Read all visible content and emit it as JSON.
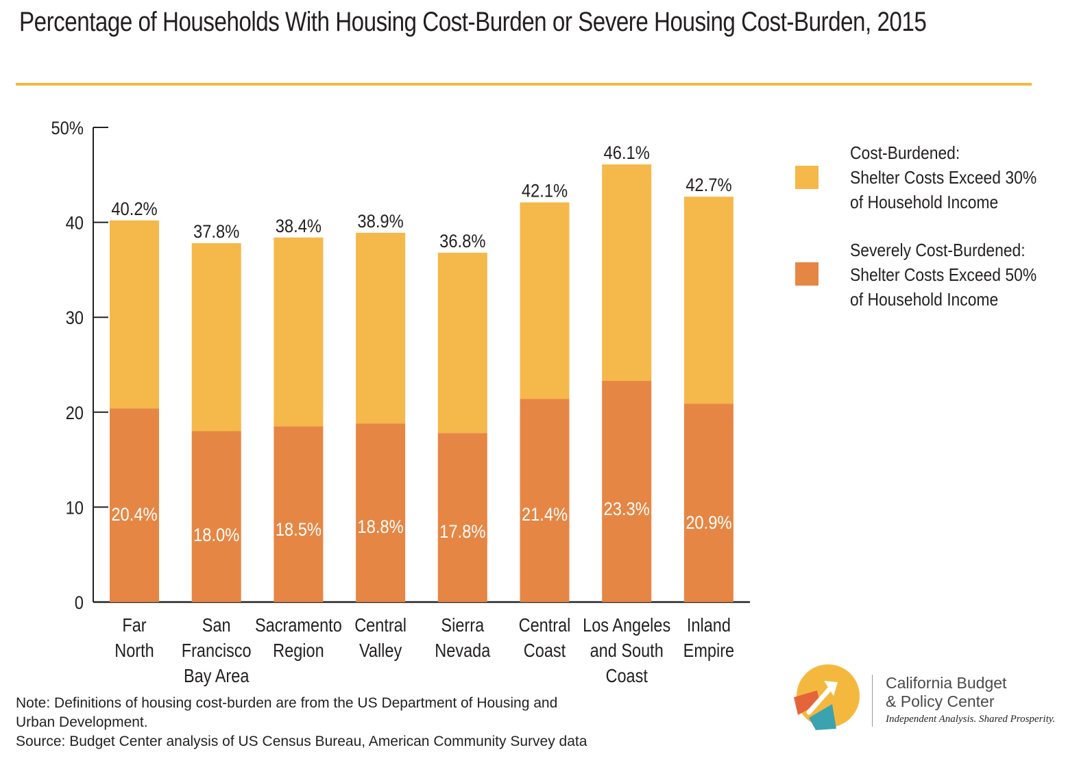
{
  "title": "Percentage of Households With Housing Cost-Burden or Severe Housing Cost-Burden, 2015",
  "colors": {
    "cost_burdened": "#f5b84a",
    "severely": "#e68644",
    "accent_rule": "#f5b83f",
    "axis": "#231f20"
  },
  "chart_data": {
    "type": "bar",
    "stacked": true,
    "categories": [
      [
        "Far",
        "North"
      ],
      [
        "San",
        "Francisco",
        "Bay Area"
      ],
      [
        "Sacramento",
        "Region"
      ],
      [
        "Central",
        "Valley"
      ],
      [
        "Sierra",
        "Nevada"
      ],
      [
        "Central",
        "Coast"
      ],
      [
        "Los Angeles",
        "and South",
        "Coast"
      ],
      [
        "Inland",
        "Empire"
      ]
    ],
    "series": [
      {
        "name": "Severely Cost-Burdened",
        "values": [
          20.4,
          18.0,
          18.5,
          18.8,
          17.8,
          21.4,
          23.3,
          20.9
        ],
        "labels": [
          "20.4%",
          "18.0%",
          "18.5%",
          "18.8%",
          "17.8%",
          "21.4%",
          "23.3%",
          "20.9%"
        ]
      },
      {
        "name": "Cost-Burdened",
        "totals": [
          40.2,
          37.8,
          38.4,
          38.9,
          36.8,
          42.1,
          46.1,
          42.7
        ],
        "labels": [
          "40.2%",
          "37.8%",
          "38.4%",
          "38.9%",
          "36.8%",
          "42.1%",
          "46.1%",
          "42.7%"
        ]
      }
    ],
    "y_ticks": [
      "0",
      "10",
      "20",
      "30",
      "40",
      "50%"
    ],
    "ylim": [
      0,
      50
    ],
    "legend_position": "right"
  },
  "legend": {
    "cost_burdened": [
      "Cost-Burdened:",
      "Shelter Costs Exceed 30%",
      "of Household Income"
    ],
    "severely": [
      "Severely Cost-Burdened:",
      "Shelter Costs Exceed 50%",
      "of Household Income"
    ]
  },
  "notes": {
    "note_line1": "Note: Definitions of housing cost-burden are from the US Department of Housing and",
    "note_line2": "Urban Development.",
    "source": "Source: Budget Center analysis of US Census Bureau, American Community Survey data"
  },
  "logo": {
    "org_line1": "California Budget",
    "org_line2": "& Policy Center",
    "tagline": "Independent Analysis. Shared Prosperity."
  }
}
